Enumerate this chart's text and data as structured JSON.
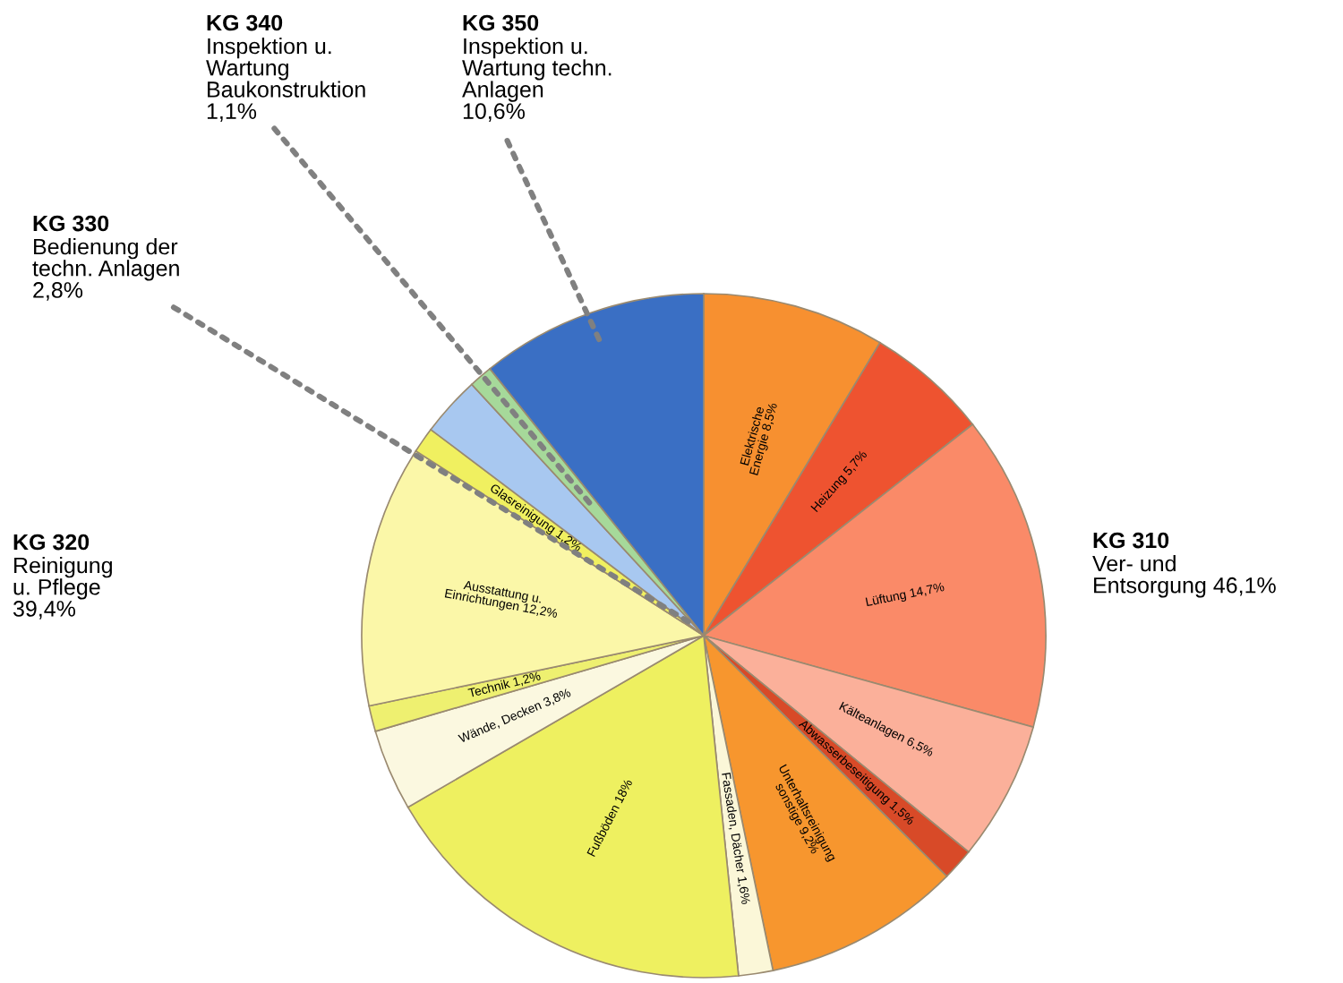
{
  "chart_data": {
    "type": "pie",
    "categories": [
      "Elektrische\nEnergie",
      "Heizung",
      "Lüftung",
      "Kälteanlagen",
      "Abwasserbeseitigung",
      "Unterhaltsreinigung\nsonstige",
      "Fassaden, Dächer",
      "Fußböden",
      "Wände, Decken",
      "Technik",
      "Ausstattung u.\nEinrichtungen",
      "Glasreinigung",
      "KG 330\nBedienung der\ntechn. Anlagen",
      "KG 340\nInspektion u.\nWartung\nBaukonstruktion",
      "KG 350\nInspektion u.\nWartung techn.\nAnlagen"
    ],
    "values": [
      8.5,
      5.7,
      14.7,
      6.5,
      1.5,
      9.2,
      1.6,
      18,
      3.8,
      1.2,
      12.2,
      1.2,
      2.8,
      1.1,
      10.6
    ],
    "value_labels": [
      "8,5%",
      "5,7%",
      "14,7%",
      "6,5%",
      "1,5%",
      "9,2%",
      "1,6%",
      "18%",
      "3,8%",
      "1,2%",
      "12,2%",
      "1,2%",
      "2,8%",
      "1,1%",
      "10,6%"
    ],
    "colors": [
      "#f79030",
      "#ee5330",
      "#fa8a68",
      "#fbb09a",
      "#d84a28",
      "#f7962e",
      "#fbf7d8",
      "#eef060",
      "#fbf8e0",
      "#eef070",
      "#fbf7a8",
      "#f0f060",
      "#a8c8f0",
      "#a6d99a",
      "#3a6fc4"
    ],
    "annotations": [
      "KG 310\nVer- und\nEntsorgung 46,1%",
      "KG 320\nReinigung\nu. Pflege\n39,4%"
    ]
  }
}
